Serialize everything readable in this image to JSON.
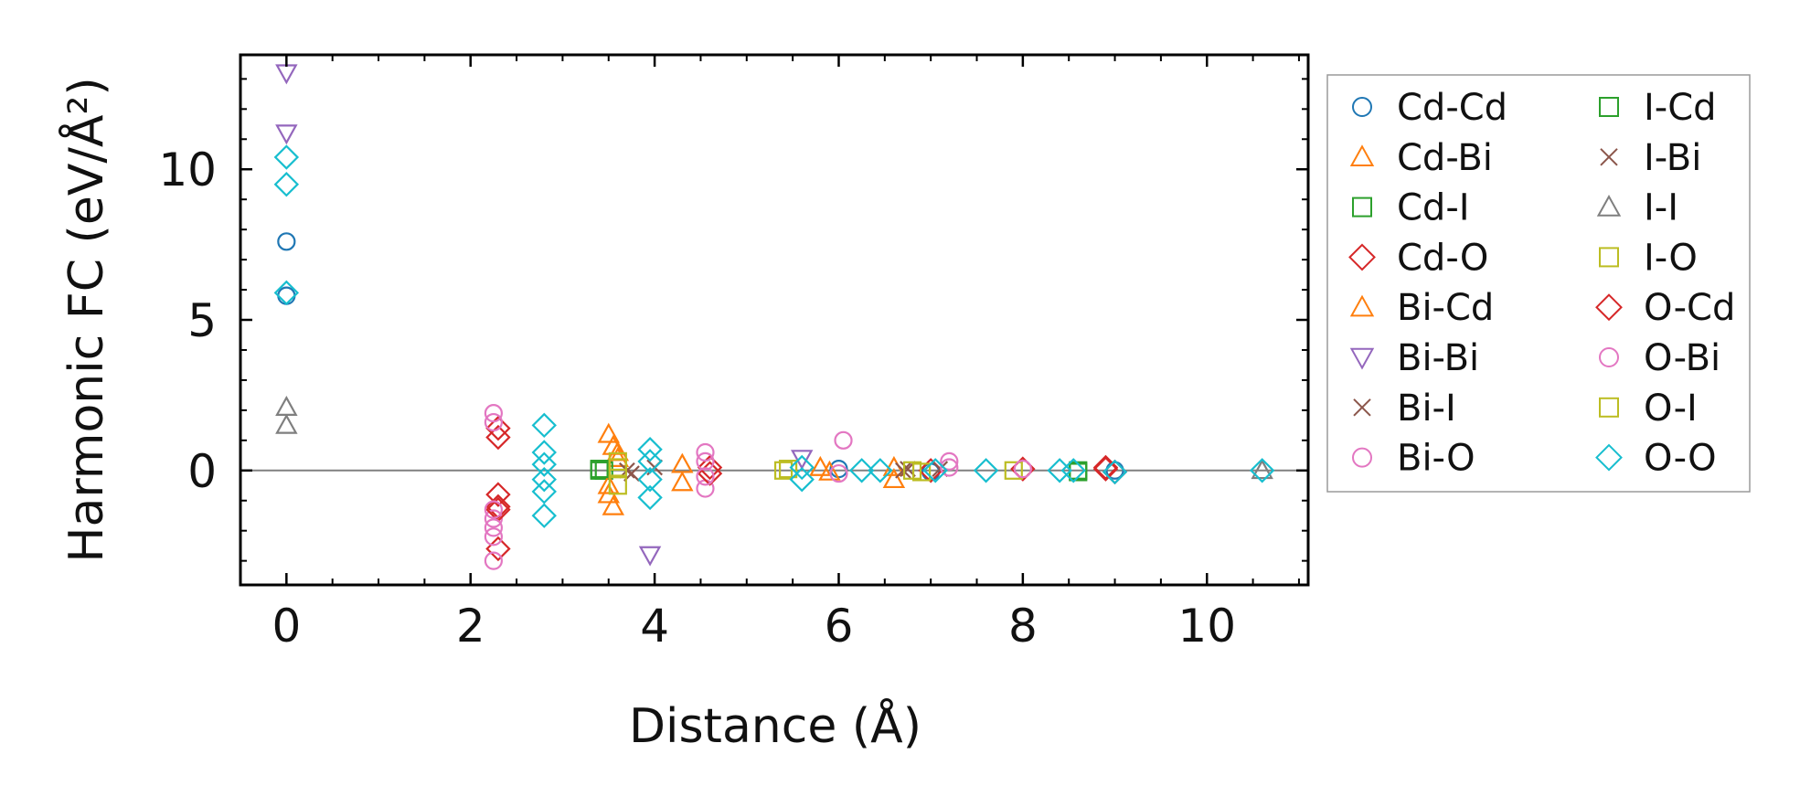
{
  "chart_data": {
    "type": "scatter",
    "xlabel": "Distance (Å)",
    "ylabel": "Harmonic FC (eV/Å²)",
    "xlim": [
      -0.5,
      11.1
    ],
    "ylim": [
      -3.8,
      13.8
    ],
    "xticks": [
      0,
      2,
      4,
      6,
      8,
      10
    ],
    "yticks": [
      0,
      5,
      10
    ],
    "xtick_labels": [
      "0",
      "2",
      "4",
      "6",
      "8",
      "10"
    ],
    "ytick_labels": [
      "0",
      "5",
      "10"
    ],
    "zero_line": true,
    "legend_position": "right",
    "series": [
      {
        "name": "Cd-Cd",
        "marker": "circle",
        "color": "#1f77b4",
        "x": [
          0,
          0,
          6.0,
          7.0,
          9.0
        ],
        "y": [
          7.6,
          5.8,
          0.05,
          -0.05,
          0.0
        ]
      },
      {
        "name": "Cd-Bi",
        "marker": "triangle-up",
        "color": "#ff7f0e",
        "x": [
          3.5,
          3.55,
          3.6,
          3.5,
          3.55,
          4.3,
          4.3,
          5.8,
          6.6
        ],
        "y": [
          1.2,
          0.8,
          0.4,
          -0.8,
          -1.2,
          0.2,
          -0.4,
          0.1,
          -0.3
        ]
      },
      {
        "name": "Cd-I",
        "marker": "square",
        "color": "#2ca02c",
        "x": [
          3.4,
          3.45,
          8.6
        ],
        "y": [
          0.0,
          0.0,
          0.0
        ]
      },
      {
        "name": "Cd-O",
        "marker": "diamond",
        "color": "#d62728",
        "x": [
          2.3,
          2.3,
          2.3,
          2.3,
          4.6,
          7.0,
          8.0,
          8.9
        ],
        "y": [
          1.4,
          1.1,
          -1.2,
          -2.6,
          0.1,
          0.0,
          0.05,
          0.05
        ]
      },
      {
        "name": "Bi-Cd",
        "marker": "triangle-up",
        "color": "#ff7f0e",
        "x": [
          3.5,
          3.6,
          5.9,
          6.6
        ],
        "y": [
          -0.5,
          0.6,
          -0.05,
          0.1
        ]
      },
      {
        "name": "Bi-Bi",
        "marker": "triangle-down",
        "color": "#9467bd",
        "x": [
          0,
          0,
          3.95,
          5.6
        ],
        "y": [
          13.2,
          11.2,
          -2.8,
          0.4
        ]
      },
      {
        "name": "Bi-I",
        "marker": "x",
        "color": "#8c564b",
        "x": [
          3.7,
          4.0,
          6.7,
          7.1
        ],
        "y": [
          0.0,
          0.1,
          0.0,
          0.05
        ]
      },
      {
        "name": "Bi-O",
        "marker": "circle",
        "color": "#e377c2",
        "x": [
          2.25,
          2.25,
          2.25,
          2.25,
          2.25,
          4.55,
          4.55,
          6.05,
          7.2
        ],
        "y": [
          1.9,
          1.6,
          -1.6,
          -2.2,
          -3.0,
          0.6,
          -0.6,
          1.0,
          0.3
        ]
      },
      {
        "name": "I-Cd",
        "marker": "square",
        "color": "#2ca02c",
        "x": [
          3.4,
          8.6
        ],
        "y": [
          0.05,
          -0.05
        ]
      },
      {
        "name": "I-Bi",
        "marker": "x",
        "color": "#8c564b",
        "x": [
          3.75,
          6.75
        ],
        "y": [
          -0.1,
          0.05
        ]
      },
      {
        "name": "I-I",
        "marker": "triangle-up",
        "color": "#7f7f7f",
        "x": [
          0,
          0,
          10.6
        ],
        "y": [
          2.1,
          1.5,
          0.0
        ]
      },
      {
        "name": "I-O",
        "marker": "square",
        "color": "#bcbd22",
        "x": [
          3.6,
          3.6,
          5.4,
          6.8,
          7.9
        ],
        "y": [
          0.3,
          -0.5,
          0.0,
          0.0,
          0.0
        ]
      },
      {
        "name": "O-Cd",
        "marker": "diamond",
        "color": "#d62728",
        "x": [
          2.3,
          2.3,
          4.6,
          8.9,
          9.0
        ],
        "y": [
          -0.8,
          -1.3,
          -0.1,
          0.1,
          -0.05
        ]
      },
      {
        "name": "O-Bi",
        "marker": "circle",
        "color": "#e377c2",
        "x": [
          2.25,
          2.25,
          4.55,
          4.55,
          6.0,
          7.2,
          8.0
        ],
        "y": [
          -1.3,
          -1.9,
          0.3,
          -0.2,
          -0.1,
          0.1,
          0.05
        ]
      },
      {
        "name": "O-I",
        "marker": "square",
        "color": "#bcbd22",
        "x": [
          3.6,
          5.45,
          6.9
        ],
        "y": [
          0.1,
          0.05,
          -0.05
        ]
      },
      {
        "name": "O-O",
        "marker": "diamond",
        "color": "#17becf",
        "x": [
          0,
          0,
          0,
          2.8,
          2.8,
          2.8,
          2.8,
          2.8,
          2.8,
          3.95,
          3.95,
          3.95,
          3.95,
          5.6,
          5.6,
          6.25,
          6.45,
          7.05,
          7.6,
          8.4,
          8.55,
          9.0,
          10.6
        ],
        "y": [
          10.4,
          9.5,
          5.9,
          1.5,
          0.6,
          0.2,
          -0.3,
          -0.7,
          -1.5,
          0.7,
          0.3,
          -0.3,
          -0.9,
          0.1,
          -0.3,
          0.0,
          0.0,
          0.0,
          0.0,
          0.0,
          0.0,
          -0.05,
          0.0
        ]
      }
    ]
  }
}
